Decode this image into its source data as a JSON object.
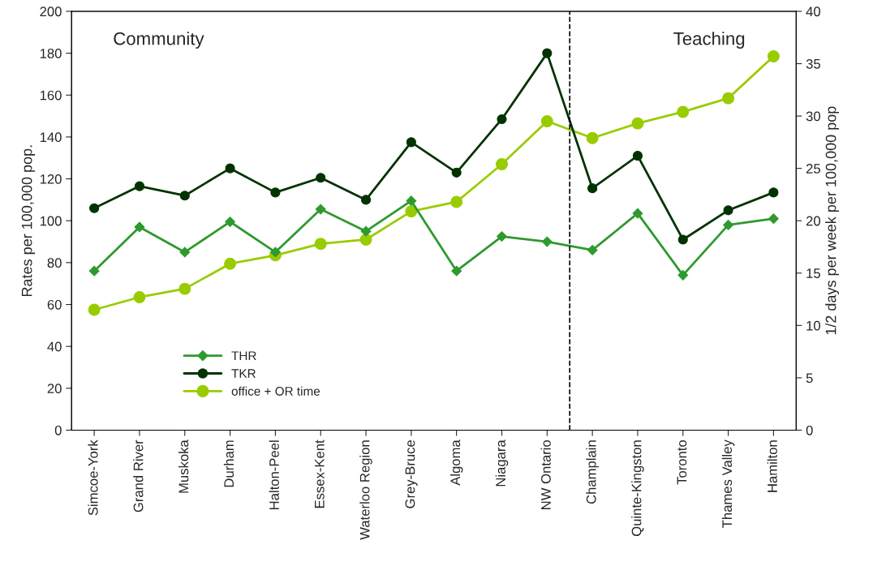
{
  "chart_data": {
    "type": "line",
    "categories": [
      "Simcoe-York",
      "Grand River",
      "Muskoka",
      "Durham",
      "Halton-Peel",
      "Essex-Kent",
      "Waterloo Region",
      "Grey-Bruce",
      "Algoma",
      "Niagara",
      "NW Ontario",
      "Champlain",
      "Quinte-Kingston",
      "Toronto",
      "Thames Valley",
      "Hamilton"
    ],
    "ylabel": "Rates per 100,000 pop.",
    "y2label": "1/2 days per week per 100,000 pop",
    "ylim": [
      0,
      200
    ],
    "yticks": [
      0,
      20,
      40,
      60,
      80,
      100,
      120,
      140,
      160,
      180,
      200
    ],
    "y2lim": [
      0,
      40
    ],
    "y2ticks": [
      0,
      5,
      10,
      15,
      20,
      25,
      30,
      35,
      40
    ],
    "series": [
      {
        "name": "THR",
        "color": "#2e9a2e",
        "marker": "diamond",
        "values": [
          76,
          97,
          85,
          99.5,
          85,
          105.5,
          95,
          109.5,
          76,
          92.5,
          90,
          86,
          103.5,
          74,
          98,
          101
        ]
      },
      {
        "name": "TKR",
        "color": "#003300",
        "marker": "circle",
        "values": [
          106,
          116.5,
          112,
          125,
          113.5,
          120.5,
          110,
          137.5,
          123,
          148.5,
          180,
          115.5,
          131,
          91,
          105,
          113.5
        ]
      },
      {
        "name": "office + OR time",
        "color": "#99cc00",
        "marker": "circle",
        "axis": "y2",
        "values": [
          11.5,
          12.7,
          13.5,
          15.9,
          16.7,
          17.8,
          18.2,
          20.9,
          21.8,
          25.4,
          29.5,
          27.9,
          29.3,
          30.4,
          31.7,
          35.7
        ]
      }
    ],
    "annotations": [
      "Community",
      "Teaching"
    ],
    "legend": "bottom left",
    "grid": false,
    "line_style": "solid"
  }
}
